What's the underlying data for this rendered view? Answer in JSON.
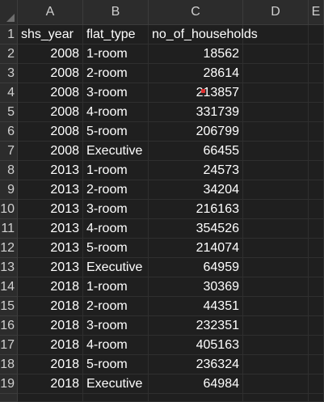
{
  "sheet": {
    "columns": [
      "A",
      "B",
      "C",
      "D",
      "E"
    ],
    "row_numbers": [
      "1",
      "2",
      "3",
      "4",
      "5",
      "6",
      "7",
      "8",
      "9",
      "10",
      "11",
      "12",
      "13",
      "14",
      "15",
      "16",
      "17",
      "18",
      "19"
    ],
    "header": {
      "a": "shs_year",
      "b": "flat_type",
      "c": "no_of_households"
    },
    "rows": [
      {
        "year": "2008",
        "flat": "1-room",
        "count": "18562"
      },
      {
        "year": "2008",
        "flat": "2-room",
        "count": "28614"
      },
      {
        "year": "2008",
        "flat": "3-room",
        "count": "213857"
      },
      {
        "year": "2008",
        "flat": "4-room",
        "count": "331739"
      },
      {
        "year": "2008",
        "flat": "5-room",
        "count": "206799"
      },
      {
        "year": "2008",
        "flat": "Executive",
        "count": "66455"
      },
      {
        "year": "2013",
        "flat": "1-room",
        "count": "24573"
      },
      {
        "year": "2013",
        "flat": "2-room",
        "count": "34204"
      },
      {
        "year": "2013",
        "flat": "3-room",
        "count": "216163"
      },
      {
        "year": "2013",
        "flat": "4-room",
        "count": "354526"
      },
      {
        "year": "2013",
        "flat": "5-room",
        "count": "214074"
      },
      {
        "year": "2013",
        "flat": "Executive",
        "count": "64959"
      },
      {
        "year": "2018",
        "flat": "1-room",
        "count": "30369"
      },
      {
        "year": "2018",
        "flat": "2-room",
        "count": "44351"
      },
      {
        "year": "2018",
        "flat": "3-room",
        "count": "232351"
      },
      {
        "year": "2018",
        "flat": "4-room",
        "count": "405163"
      },
      {
        "year": "2018",
        "flat": "5-room",
        "count": "236324"
      },
      {
        "year": "2018",
        "flat": "Executive",
        "count": "64984"
      }
    ],
    "colors": {
      "background": "#1f1f1f",
      "header_bg": "#2c2c2c",
      "gridline": "#2f2f2f",
      "text": "#ffffff",
      "comment_marker": "#e03030"
    }
  }
}
